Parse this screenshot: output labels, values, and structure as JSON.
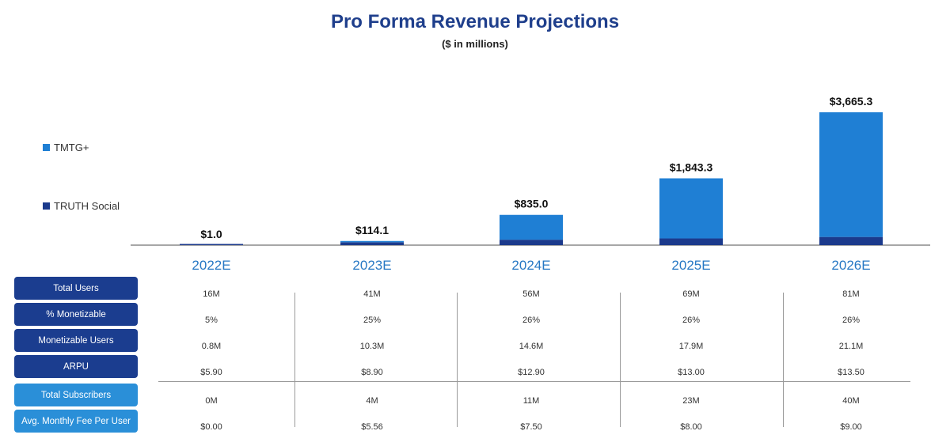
{
  "chart_data": {
    "type": "bar",
    "stacked": true,
    "title": "Pro Forma Revenue Projections",
    "subtitle": "($ in millions)",
    "categories": [
      "2022E",
      "2023E",
      "2024E",
      "2025E",
      "2026E"
    ],
    "series": [
      {
        "name": "TRUTH Social",
        "color": "#1b3a8c",
        "values": [
          1.0,
          80.0,
          150.0,
          185.0,
          226.0
        ]
      },
      {
        "name": "TMTG+",
        "color": "#1f7fd4",
        "values": [
          0.0,
          34.1,
          685.0,
          1658.3,
          3439.3
        ]
      }
    ],
    "totals": [
      1.0,
      114.1,
      835.0,
      1843.3,
      3665.3
    ],
    "total_labels": [
      "$1.0",
      "$114.1",
      "$835.0",
      "$1,843.3",
      "$3,665.3"
    ],
    "legend": [
      {
        "name": "TMTG+",
        "color": "#1f7fd4"
      },
      {
        "name": "TRUTH Social",
        "color": "#1b3a8c"
      }
    ],
    "legend_position": "left",
    "grid": false
  },
  "table": {
    "rows": [
      {
        "label": "Total Users",
        "style": "dark",
        "values": [
          "16M",
          "41M",
          "56M",
          "69M",
          "81M"
        ]
      },
      {
        "label": "% Monetizable",
        "style": "dark",
        "values": [
          "5%",
          "25%",
          "26%",
          "26%",
          "26%"
        ]
      },
      {
        "label": "Monetizable Users",
        "style": "dark",
        "values": [
          "0.8M",
          "10.3M",
          "14.6M",
          "17.9M",
          "21.1M"
        ]
      },
      {
        "label": "ARPU",
        "style": "dark",
        "values": [
          "$5.90",
          "$8.90",
          "$12.90",
          "$13.00",
          "$13.50"
        ]
      },
      {
        "label": "Total Subscribers",
        "style": "light",
        "values": [
          "0M",
          "4M",
          "11M",
          "23M",
          "40M"
        ]
      },
      {
        "label": "Avg. Monthly Fee Per User",
        "style": "light",
        "values": [
          "$0.00",
          "$5.56",
          "$7.50",
          "$8.00",
          "$9.00"
        ]
      }
    ]
  }
}
